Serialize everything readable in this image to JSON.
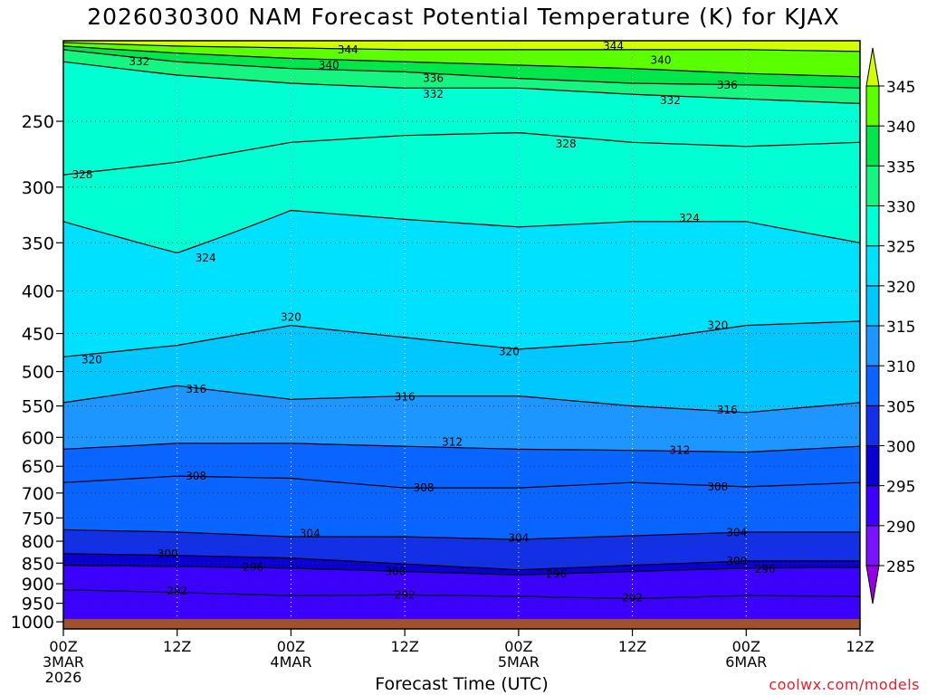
{
  "chart_data": {
    "type": "contour",
    "title": "2026030300 NAM Forecast Potential Temperature (K) for KJAX",
    "xlabel": "Forecast Time (UTC)",
    "ylabel": "",
    "credit": "coolwx.com/models",
    "x_ticks": [
      {
        "hour": 0,
        "label": "00Z",
        "sub": "3MAR",
        "sub2": "2026"
      },
      {
        "hour": 12,
        "label": "12Z",
        "sub": "",
        "sub2": ""
      },
      {
        "hour": 24,
        "label": "00Z",
        "sub": "4MAR",
        "sub2": ""
      },
      {
        "hour": 36,
        "label": "12Z",
        "sub": "",
        "sub2": ""
      },
      {
        "hour": 48,
        "label": "00Z",
        "sub": "5MAR",
        "sub2": ""
      },
      {
        "hour": 60,
        "label": "12Z",
        "sub": "",
        "sub2": ""
      },
      {
        "hour": 72,
        "label": "00Z",
        "sub": "6MAR",
        "sub2": ""
      },
      {
        "hour": 84,
        "label": "12Z",
        "sub": "",
        "sub2": ""
      }
    ],
    "xlim": [
      0,
      84
    ],
    "y_ticks": [
      250,
      300,
      350,
      400,
      450,
      500,
      550,
      600,
      650,
      700,
      750,
      800,
      850,
      900,
      950,
      1000
    ],
    "ylim": [
      1020,
      200
    ],
    "y_scale": "log",
    "grid": true,
    "colorbar_levels": [
      285,
      290,
      295,
      300,
      305,
      310,
      315,
      320,
      325,
      330,
      335,
      340,
      345
    ],
    "colorbar_colors": [
      "#9600e6",
      "#7a14ff",
      "#3c00ff",
      "#0a00d2",
      "#1430e6",
      "#0a64ff",
      "#1e96ff",
      "#00c8ff",
      "#00e1ff",
      "#00ffd2",
      "#14f582",
      "#00e64b",
      "#5aff00",
      "#d2ff00"
    ],
    "ground_color": "#a0522d",
    "contour_lines": [
      {
        "value": 292,
        "label": "292",
        "pts": [
          [
            0,
            915
          ],
          [
            12,
            922
          ],
          [
            24,
            930
          ],
          [
            36,
            928
          ],
          [
            48,
            932
          ],
          [
            60,
            938
          ],
          [
            72,
            930
          ],
          [
            84,
            932
          ]
        ],
        "labels_at": [
          [
            12,
            918
          ],
          [
            36,
            928
          ],
          [
            60,
            936
          ]
        ]
      },
      {
        "value": 296,
        "label": "296",
        "pts": [
          [
            0,
            855
          ],
          [
            12,
            858
          ],
          [
            24,
            862
          ],
          [
            36,
            870
          ],
          [
            48,
            878
          ],
          [
            60,
            870
          ],
          [
            72,
            862
          ],
          [
            84,
            860
          ]
        ],
        "labels_at": [
          [
            20,
            860
          ],
          [
            52,
            876
          ],
          [
            74,
            864
          ]
        ]
      },
      {
        "value": 300,
        "label": "300",
        "pts": [
          [
            0,
            828
          ],
          [
            12,
            832
          ],
          [
            24,
            838
          ],
          [
            36,
            852
          ],
          [
            48,
            866
          ],
          [
            60,
            855
          ],
          [
            72,
            845
          ],
          [
            84,
            845
          ]
        ],
        "labels_at": [
          [
            11,
            828
          ],
          [
            35,
            870
          ],
          [
            71,
            845
          ]
        ]
      },
      {
        "value": 304,
        "label": "304",
        "pts": [
          [
            0,
            775
          ],
          [
            12,
            780
          ],
          [
            24,
            790
          ],
          [
            36,
            790
          ],
          [
            48,
            796
          ],
          [
            60,
            788
          ],
          [
            72,
            780
          ],
          [
            84,
            780
          ]
        ],
        "labels_at": [
          [
            26,
            783
          ],
          [
            48,
            793
          ],
          [
            71,
            781
          ]
        ]
      },
      {
        "value": 308,
        "label": "308",
        "pts": [
          [
            0,
            680
          ],
          [
            12,
            668
          ],
          [
            24,
            672
          ],
          [
            36,
            690
          ],
          [
            48,
            690
          ],
          [
            60,
            680
          ],
          [
            72,
            688
          ],
          [
            84,
            680
          ]
        ],
        "labels_at": [
          [
            14,
            668
          ],
          [
            38,
            690
          ],
          [
            69,
            688
          ]
        ]
      },
      {
        "value": 312,
        "label": "312",
        "pts": [
          [
            0,
            620
          ],
          [
            12,
            610
          ],
          [
            24,
            610
          ],
          [
            36,
            615
          ],
          [
            48,
            620
          ],
          [
            60,
            622
          ],
          [
            72,
            625
          ],
          [
            84,
            615
          ]
        ],
        "labels_at": [
          [
            41,
            608
          ],
          [
            65,
            622
          ]
        ]
      },
      {
        "value": 316,
        "label": "316",
        "pts": [
          [
            0,
            545
          ],
          [
            12,
            520
          ],
          [
            24,
            540
          ],
          [
            36,
            535
          ],
          [
            48,
            535
          ],
          [
            60,
            550
          ],
          [
            72,
            560
          ],
          [
            84,
            545
          ]
        ],
        "labels_at": [
          [
            14,
            525
          ],
          [
            36,
            536
          ],
          [
            70,
            556
          ]
        ]
      },
      {
        "value": 320,
        "label": "320",
        "pts": [
          [
            0,
            480
          ],
          [
            12,
            465
          ],
          [
            24,
            440
          ],
          [
            36,
            455
          ],
          [
            48,
            470
          ],
          [
            60,
            460
          ],
          [
            72,
            440
          ],
          [
            84,
            435
          ]
        ],
        "labels_at": [
          [
            3,
            484
          ],
          [
            24,
            430
          ],
          [
            47,
            473
          ],
          [
            69,
            440
          ]
        ]
      },
      {
        "value": 324,
        "label": "324",
        "pts": [
          [
            0,
            330
          ],
          [
            12,
            360
          ],
          [
            24,
            320
          ],
          [
            36,
            328
          ],
          [
            48,
            335
          ],
          [
            60,
            330
          ],
          [
            72,
            330
          ],
          [
            84,
            350
          ]
        ],
        "labels_at": [
          [
            15,
            365
          ],
          [
            66,
            327
          ]
        ]
      },
      {
        "value": 328,
        "label": "328",
        "pts": [
          [
            0,
            290
          ],
          [
            12,
            280
          ],
          [
            24,
            265
          ],
          [
            36,
            260
          ],
          [
            48,
            258
          ],
          [
            60,
            265
          ],
          [
            72,
            268
          ],
          [
            84,
            265
          ]
        ],
        "labels_at": [
          [
            2,
            290
          ],
          [
            53,
            266
          ]
        ]
      },
      {
        "value": 332,
        "label": "332",
        "pts": [
          [
            0,
            212
          ],
          [
            12,
            220
          ],
          [
            24,
            225
          ],
          [
            36,
            228
          ],
          [
            48,
            228
          ],
          [
            60,
            232
          ],
          [
            72,
            235
          ],
          [
            84,
            238
          ]
        ],
        "labels_at": [
          [
            8,
            212
          ],
          [
            39,
            232
          ],
          [
            64,
            236
          ]
        ]
      },
      {
        "value": 336,
        "label": "336",
        "pts": [
          [
            0,
            205
          ],
          [
            12,
            212
          ],
          [
            24,
            216
          ],
          [
            36,
            218
          ],
          [
            48,
            222
          ],
          [
            60,
            225
          ],
          [
            72,
            226
          ],
          [
            84,
            228
          ]
        ],
        "labels_at": [
          [
            39,
            222
          ],
          [
            70,
            226
          ]
        ]
      },
      {
        "value": 340,
        "label": "340",
        "pts": [
          [
            0,
            203
          ],
          [
            12,
            207
          ],
          [
            24,
            210
          ],
          [
            36,
            212
          ],
          [
            48,
            214
          ],
          [
            60,
            216
          ],
          [
            72,
            219
          ],
          [
            84,
            221
          ]
        ],
        "labels_at": [
          [
            28,
            214
          ],
          [
            63,
            211
          ]
        ]
      },
      {
        "value": 344,
        "label": "344",
        "pts": [
          [
            0,
            201
          ],
          [
            12,
            203
          ],
          [
            24,
            204
          ],
          [
            36,
            205
          ],
          [
            48,
            205
          ],
          [
            60,
            205
          ],
          [
            72,
            205
          ],
          [
            84,
            206
          ]
        ],
        "labels_at": [
          [
            30,
            205
          ],
          [
            58,
            203
          ]
        ]
      }
    ]
  }
}
